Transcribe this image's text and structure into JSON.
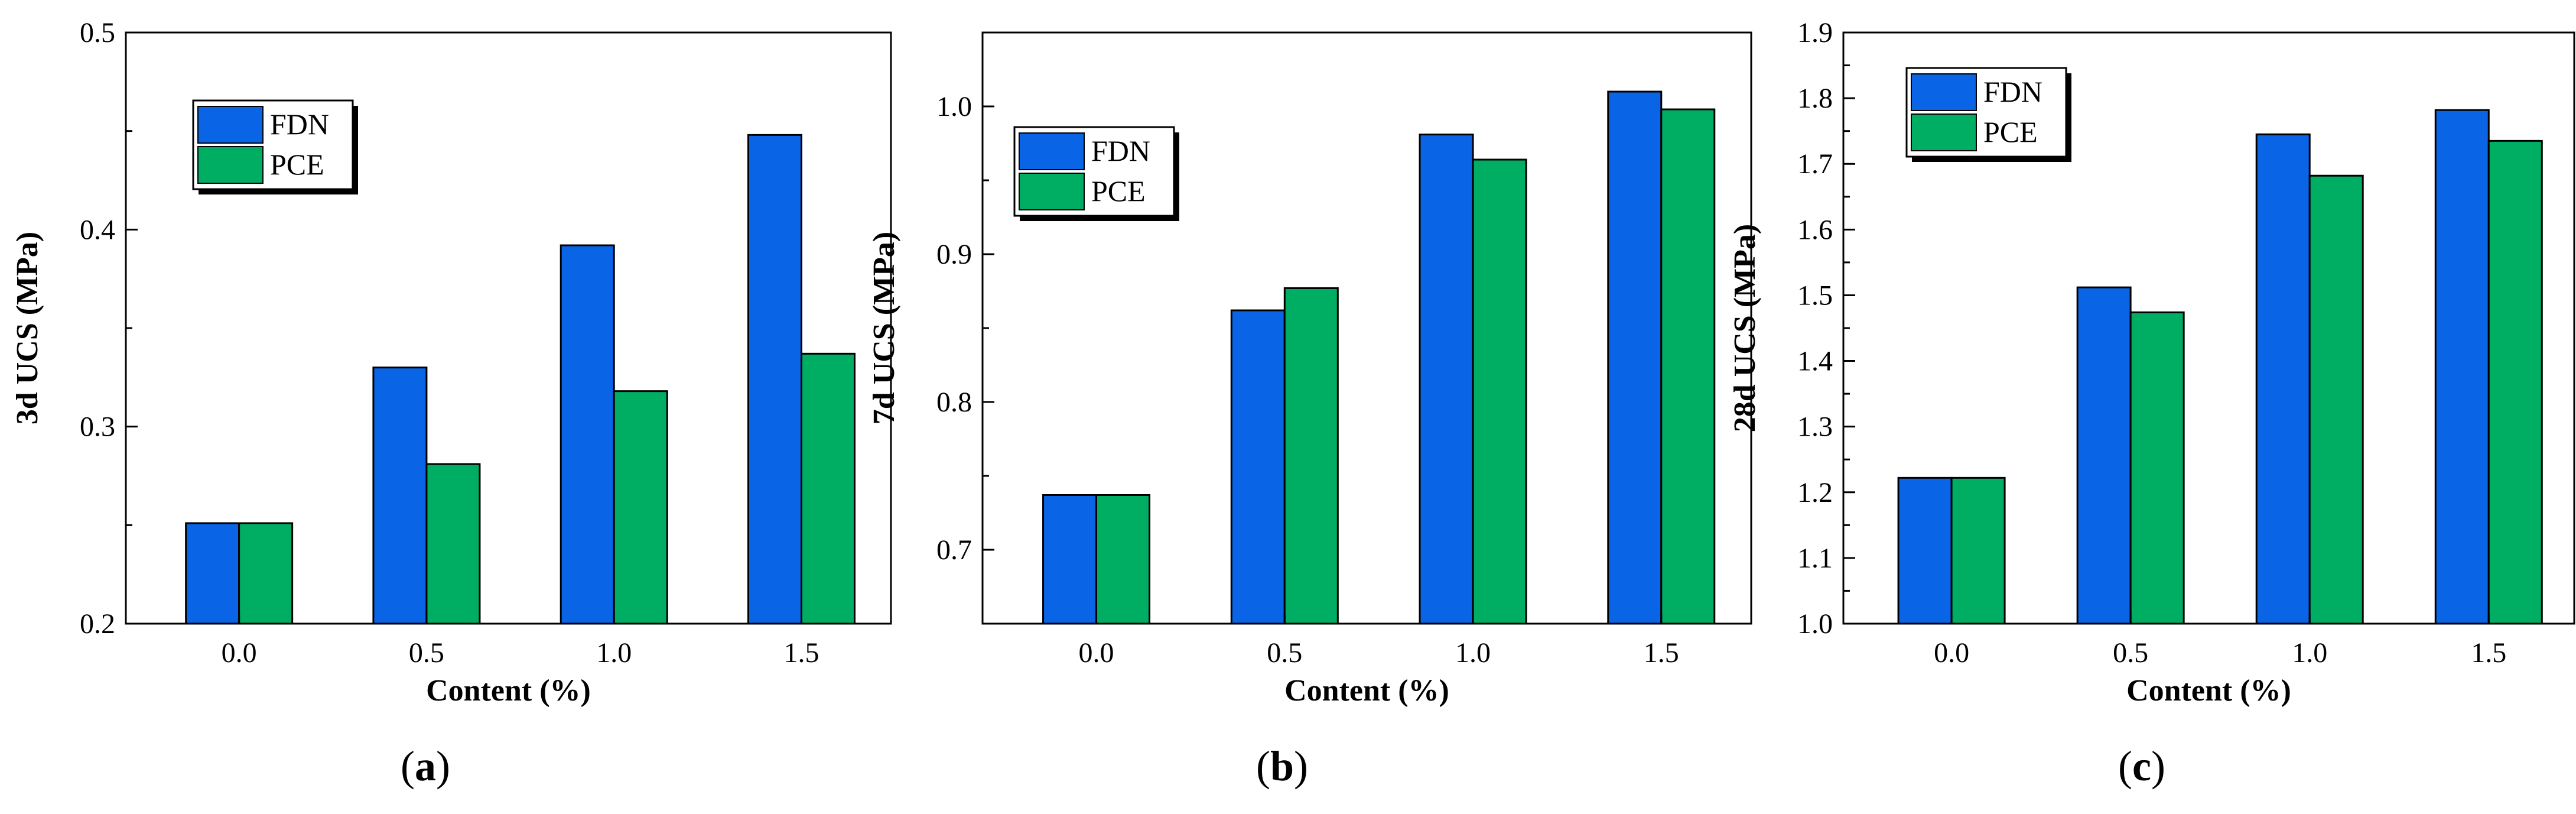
{
  "colors": {
    "FDN": "#0a64e6",
    "PCE": "#00ae63",
    "axis": "#000000",
    "background": "#ffffff"
  },
  "chart_data": [
    {
      "type": "bar",
      "panel_label": "a",
      "categories": [
        "0.0",
        "0.5",
        "1.0",
        "1.5"
      ],
      "series": [
        {
          "name": "FDN",
          "values": [
            0.251,
            0.33,
            0.392,
            0.448
          ]
        },
        {
          "name": "PCE",
          "values": [
            0.251,
            0.281,
            0.318,
            0.337
          ]
        }
      ],
      "xlabel": "Content (%)",
      "ylabel": "3d UCS (MPa)",
      "ylim": [
        0.2,
        0.5
      ],
      "yticks": [
        0.2,
        0.3,
        0.4,
        0.5
      ],
      "ytick_labels": [
        "0.2",
        "0.3",
        "0.4",
        "0.5"
      ],
      "legend": [
        "FDN",
        "PCE"
      ],
      "legend_position": "top-left"
    },
    {
      "type": "bar",
      "panel_label": "b",
      "categories": [
        "0.0",
        "0.5",
        "1.0",
        "1.5"
      ],
      "series": [
        {
          "name": "FDN",
          "values": [
            0.737,
            0.862,
            0.981,
            1.01
          ]
        },
        {
          "name": "PCE",
          "values": [
            0.737,
            0.877,
            0.964,
            0.998
          ]
        }
      ],
      "xlabel": "Content (%)",
      "ylabel": "7d UCS (MPa)",
      "ylim": [
        0.65,
        1.05
      ],
      "yticks": [
        0.7,
        0.8,
        0.9,
        1.0
      ],
      "ytick_labels": [
        "0.7",
        "0.8",
        "0.9",
        "1.0"
      ],
      "legend": [
        "FDN",
        "PCE"
      ],
      "legend_position": "top-left"
    },
    {
      "type": "bar",
      "panel_label": "c",
      "categories": [
        "0.0",
        "0.5",
        "1.0",
        "1.5"
      ],
      "series": [
        {
          "name": "FDN",
          "values": [
            1.222,
            1.512,
            1.745,
            1.782
          ]
        },
        {
          "name": "PCE",
          "values": [
            1.222,
            1.474,
            1.682,
            1.735
          ]
        }
      ],
      "xlabel": "Content (%)",
      "ylabel": "28d UCS (MPa)",
      "ylim": [
        1.0,
        1.9
      ],
      "yticks": [
        1.0,
        1.1,
        1.2,
        1.3,
        1.4,
        1.5,
        1.6,
        1.7,
        1.8,
        1.9
      ],
      "ytick_labels": [
        "1.0",
        "1.1",
        "1.2",
        "1.3",
        "1.4",
        "1.5",
        "1.6",
        "1.7",
        "1.8",
        "1.9"
      ],
      "legend": [
        "FDN",
        "PCE"
      ],
      "legend_position": "top-left"
    }
  ]
}
